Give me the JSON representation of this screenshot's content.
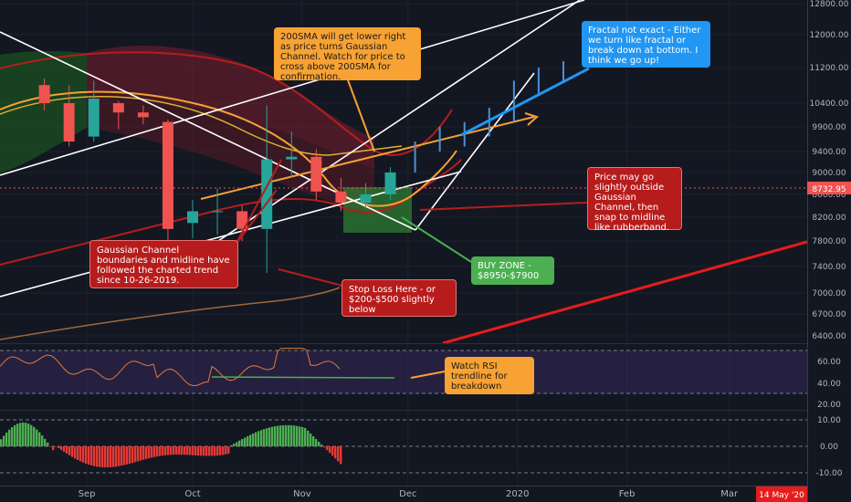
{
  "chart_data": [
    {
      "type": "candlestick",
      "title": "",
      "x_ticks": [
        "Sep",
        "Oct",
        "Nov",
        "Dec",
        "2020",
        "Feb",
        "Mar"
      ],
      "y_ticks": [
        12800,
        12000,
        11200,
        10400,
        9900,
        9400,
        9000,
        8600,
        8200,
        7800,
        7400,
        7000,
        6700,
        6400
      ],
      "y_tick_labels": [
        "12800.00",
        "12000.00",
        "11200.00",
        "10400.00",
        "9900.00",
        "9400.00",
        "9000.00",
        "8600.00",
        "8200.00",
        "7800.00",
        "7400.00",
        "7000.00",
        "6700.00",
        "6400.00"
      ],
      "scale": "log",
      "last_price_label": "8732.95",
      "date_badge": "14 May '20",
      "candles": [
        {
          "date": "2019-08-20",
          "o": 10800,
          "h": 10950,
          "l": 10250,
          "c": 10400
        },
        {
          "date": "2019-08-27",
          "o": 10400,
          "h": 10800,
          "l": 9500,
          "c": 9600
        },
        {
          "date": "2019-09-03",
          "o": 9700,
          "h": 10900,
          "l": 9600,
          "c": 10500
        },
        {
          "date": "2019-09-10",
          "o": 10400,
          "h": 10450,
          "l": 9850,
          "c": 10200
        },
        {
          "date": "2019-09-17",
          "o": 10200,
          "h": 10350,
          "l": 9950,
          "c": 10100
        },
        {
          "date": "2019-09-24",
          "o": 10000,
          "h": 10050,
          "l": 7800,
          "c": 8000
        },
        {
          "date": "2019-10-01",
          "o": 8100,
          "h": 8500,
          "l": 7850,
          "c": 8300
        },
        {
          "date": "2019-10-08",
          "o": 8300,
          "h": 8700,
          "l": 7900,
          "c": 8300
        },
        {
          "date": "2019-10-15",
          "o": 8300,
          "h": 8400,
          "l": 7800,
          "c": 8000
        },
        {
          "date": "2019-10-22",
          "o": 8000,
          "h": 10350,
          "l": 7300,
          "c": 9250
        },
        {
          "date": "2019-10-29",
          "o": 9250,
          "h": 9800,
          "l": 8900,
          "c": 9300
        },
        {
          "date": "2019-11-05",
          "o": 9300,
          "h": 9450,
          "l": 8500,
          "c": 8650
        },
        {
          "date": "2019-11-12",
          "o": 8650,
          "h": 8900,
          "l": 8300,
          "c": 8450
        },
        {
          "date": "2019-11-19",
          "o": 8450,
          "h": 8800,
          "l": 8350,
          "c": 8600
        },
        {
          "date": "2019-11-26",
          "o": 8600,
          "h": 9100,
          "l": 8500,
          "c": 9000
        }
      ],
      "projection_segments": [
        {
          "date": "2019-12-03",
          "low": 9000,
          "high": 9600
        },
        {
          "date": "2019-12-10",
          "low": 9400,
          "high": 9900
        },
        {
          "date": "2019-12-17",
          "low": 9500,
          "high": 10000
        },
        {
          "date": "2019-12-24",
          "low": 9700,
          "high": 10300
        },
        {
          "date": "2019-12-31",
          "low": 10000,
          "high": 10900
        },
        {
          "date": "2020-01-07",
          "low": 10600,
          "high": 11200
        },
        {
          "date": "2020-01-14",
          "low": 10900,
          "high": 11350
        }
      ],
      "buy_zone": {
        "from": "2019-11-12",
        "to": "2019-11-29",
        "low": 7900,
        "high": 8950
      }
    },
    {
      "type": "line",
      "name": "RSI",
      "y_ticks": [
        60,
        40,
        20
      ],
      "y_tick_labels": [
        "60.00",
        "40.00",
        "20.00"
      ]
    },
    {
      "type": "histogram",
      "name": "Momentum",
      "y_ticks": [
        10,
        0,
        -10
      ],
      "y_tick_labels": [
        "10.00",
        "0.00",
        "-10.00"
      ]
    }
  ],
  "annotations": {
    "sma_note": "200SMA will get lower right as price turns Gaussian Channel. Watch for price to cross above 200SMA for confirmation.",
    "fractal_note": "Fractal not exact - Either we turn like fractal or break down at bottom. I think we go up!",
    "outside_note": "Price may go slightly outside Gaussian Channel, then snap to midline like rubberband.",
    "gaussian_note": "Gaussian Channel boundaries and midline have followed the charted trend since 10-26-2019.",
    "buy_zone_note": "BUY ZONE -\n$8950-$7900",
    "stop_loss_note": "Stop Loss Here - or $200-$500 slightly below",
    "rsi_note": "Watch RSI trendline for breakdown"
  },
  "colors": {
    "background": "#131722",
    "up": "#26a69a",
    "down": "#ef5350",
    "orange_callout": "#f7a233",
    "blue_callout": "#2196f3",
    "red_callout": "#b71c1c",
    "green_callout": "#4caf50",
    "last_price": "#ef5350"
  }
}
